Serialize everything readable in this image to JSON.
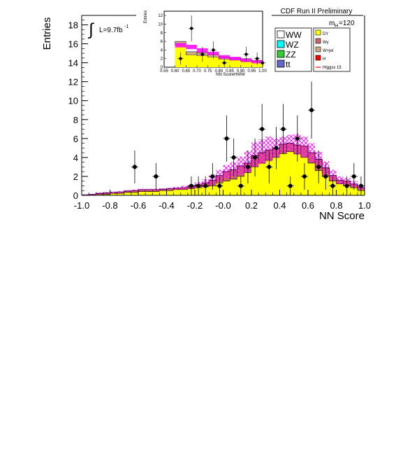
{
  "chart_data": [
    {
      "type": "histogram",
      "xlabel": "NN Score",
      "ylabel": "Entries",
      "xlim": [
        -1.0,
        1.0
      ],
      "ylim": [
        0,
        19
      ],
      "x_ticks": [
        "-1.0",
        "-0.8",
        "-0.6",
        "-0.4",
        "-0.2",
        "-0.0",
        "0.2",
        "0.4",
        "0.6",
        "0.8",
        "1.0"
      ],
      "y_ticks": [
        "0",
        "2",
        "4",
        "6",
        "8",
        "10",
        "12",
        "14",
        "16",
        "18"
      ],
      "header": "CDF Run II Preliminary",
      "luminosity": "L=9.7fb",
      "lumi_exponent": "-1",
      "mass_label": "m",
      "mass_subscript": "H",
      "mass_value": "=120",
      "bin_edges": [
        -1.0,
        -0.95,
        -0.9,
        -0.85,
        -0.8,
        -0.75,
        -0.7,
        -0.65,
        -0.6,
        -0.55,
        -0.5,
        -0.45,
        -0.4,
        -0.35,
        -0.3,
        -0.25,
        -0.2,
        -0.15,
        -0.1,
        -0.05,
        0.0,
        0.05,
        0.1,
        0.15,
        0.2,
        0.25,
        0.3,
        0.35,
        0.4,
        0.45,
        0.5,
        0.55,
        0.6,
        0.65,
        0.7,
        0.75,
        0.8,
        0.85,
        0.9,
        0.95,
        1.0
      ],
      "stack_yellow_top": [
        0,
        0,
        0.1,
        0.1,
        0.2,
        0.2,
        0.3,
        0.3,
        0.4,
        0.4,
        0.4,
        0.5,
        0.5,
        0.6,
        0.6,
        0.7,
        0.8,
        0.9,
        1.0,
        1.3,
        1.5,
        1.7,
        2.0,
        2.4,
        3.0,
        3.4,
        3.7,
        4.0,
        4.4,
        4.6,
        4.4,
        4.0,
        3.4,
        2.6,
        2.0,
        1.5,
        1.2,
        1.0,
        0.8,
        0.5
      ],
      "stack_total": [
        0.05,
        0.1,
        0.2,
        0.25,
        0.3,
        0.35,
        0.45,
        0.5,
        0.6,
        0.6,
        0.6,
        0.65,
        0.7,
        0.75,
        0.8,
        0.9,
        1.1,
        1.3,
        1.6,
        2.1,
        2.5,
        2.7,
        3.1,
        3.4,
        4.2,
        4.5,
        4.8,
        5.0,
        5.4,
        5.5,
        5.3,
        5.2,
        4.5,
        3.8,
        2.9,
        2.1,
        1.6,
        1.5,
        1.2,
        0.8
      ],
      "band_upper": [
        0.1,
        0.15,
        0.3,
        0.35,
        0.4,
        0.45,
        0.55,
        0.6,
        0.7,
        0.7,
        0.7,
        0.75,
        0.8,
        0.9,
        1.0,
        1.1,
        1.4,
        1.7,
        2.1,
        2.7,
        3.2,
        3.5,
        4.1,
        4.7,
        5.6,
        5.9,
        6.2,
        6.0,
        6.2,
        6.4,
        6.5,
        6.2,
        5.5,
        4.6,
        3.6,
        2.7,
        2.0,
        1.8,
        1.5,
        1.0
      ],
      "band_lower": [
        0,
        0.05,
        0.1,
        0.15,
        0.2,
        0.25,
        0.35,
        0.4,
        0.5,
        0.5,
        0.5,
        0.55,
        0.6,
        0.6,
        0.6,
        0.7,
        0.8,
        0.9,
        1.1,
        1.5,
        1.8,
        2.0,
        2.2,
        2.4,
        3.0,
        3.3,
        3.6,
        4.0,
        4.5,
        4.7,
        4.3,
        4.0,
        3.5,
        2.9,
        2.2,
        1.6,
        1.2,
        1.1,
        0.9,
        0.6
      ],
      "data_points": [
        {
          "x": -0.625,
          "y": 3
        },
        {
          "x": -0.475,
          "y": 2
        },
        {
          "x": -0.225,
          "y": 1
        },
        {
          "x": -0.175,
          "y": 1
        },
        {
          "x": -0.125,
          "y": 1
        },
        {
          "x": -0.075,
          "y": 2
        },
        {
          "x": -0.025,
          "y": 1
        },
        {
          "x": 0.025,
          "y": 6
        },
        {
          "x": 0.075,
          "y": 4
        },
        {
          "x": 0.125,
          "y": 1
        },
        {
          "x": 0.175,
          "y": 3
        },
        {
          "x": 0.225,
          "y": 4
        },
        {
          "x": 0.275,
          "y": 7
        },
        {
          "x": 0.325,
          "y": 3
        },
        {
          "x": 0.375,
          "y": 5
        },
        {
          "x": 0.425,
          "y": 7
        },
        {
          "x": 0.475,
          "y": 1
        },
        {
          "x": 0.525,
          "y": 6
        },
        {
          "x": 0.575,
          "y": 2
        },
        {
          "x": 0.625,
          "y": 9
        },
        {
          "x": 0.675,
          "y": 3
        },
        {
          "x": 0.725,
          "y": 2
        },
        {
          "x": 0.775,
          "y": 1
        },
        {
          "x": 0.875,
          "y": 1
        },
        {
          "x": 0.925,
          "y": 2
        },
        {
          "x": 0.975,
          "y": 1
        }
      ],
      "legend_left": [
        {
          "label": "WW",
          "color": "#ffffff"
        },
        {
          "label": "WZ",
          "color": "#00ffff"
        },
        {
          "label": "ZZ",
          "color": "#33cc33"
        },
        {
          "label": "tt",
          "color": "#6666cc"
        }
      ],
      "legend_right": [
        {
          "label": "DY",
          "color": "#ffff00"
        },
        {
          "label": "Wγ",
          "color": "#cc6666"
        },
        {
          "label": "W+jet",
          "color": "#ccaa88"
        },
        {
          "label": "H",
          "color": "#ff0000"
        },
        {
          "label": "Higgsx 15",
          "color": "#ff0000"
        }
      ],
      "colors": {
        "dy": "#ffff00",
        "wgamma": "#cc6666",
        "band": "#ff00ff",
        "wjet": "#ccaa88"
      }
    },
    {
      "type": "histogram",
      "xlabel": "NN ScoreHWW",
      "ylabel": "Entries",
      "xlim": [
        0.55,
        1.0
      ],
      "ylim": [
        0,
        13
      ],
      "x_ticks": [
        "0.55",
        "0.60",
        "0.65",
        "0.70",
        "0.75",
        "0.80",
        "0.85",
        "0.90",
        "0.95",
        "1.00"
      ],
      "y_ticks": [
        "0",
        "2",
        "4",
        "6",
        "8",
        "10",
        "12"
      ],
      "bin_edges": [
        0.6,
        0.65,
        0.7,
        0.75,
        0.8,
        0.85,
        0.9,
        0.95,
        1.0
      ],
      "stack_yellow_top": [
        5.2,
        2.8,
        2.6,
        2.3,
        1.8,
        1.6,
        1.4,
        1.2
      ],
      "stack_total": [
        6.0,
        3.6,
        3.4,
        3.0,
        2.4,
        2.2,
        2.0,
        1.6
      ],
      "magenta_upper": [
        5.6,
        5.2,
        4.4,
        3.6,
        2.8,
        2.4,
        2.0,
        1.6
      ],
      "magenta_lower": [
        4.6,
        4.2,
        3.4,
        2.8,
        2.0,
        1.6,
        1.2,
        0.9
      ],
      "data_points": [
        {
          "x": 0.625,
          "y": 2
        },
        {
          "x": 0.675,
          "y": 9
        },
        {
          "x": 0.725,
          "y": 3
        },
        {
          "x": 0.775,
          "y": 4
        },
        {
          "x": 0.825,
          "y": 1
        },
        {
          "x": 0.925,
          "y": 3
        },
        {
          "x": 0.975,
          "y": 2
        },
        {
          "x": 1.0,
          "y": 1
        }
      ]
    }
  ]
}
